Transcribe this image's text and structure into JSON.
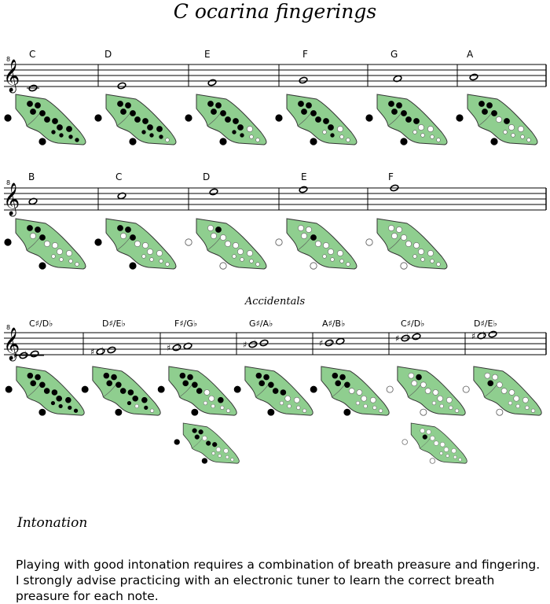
{
  "title": "C ocarina fingerings",
  "clef_octave_mark": "8",
  "rows": [
    {
      "id": "natural-row-1",
      "notes": [
        {
          "label": "C",
          "fingering": [
            1,
            1,
            1,
            1,
            1,
            1,
            1,
            1,
            1,
            1,
            1,
            1
          ]
        },
        {
          "label": "D",
          "fingering": [
            1,
            1,
            1,
            1,
            1,
            1,
            1,
            1,
            1,
            1,
            1,
            0
          ]
        },
        {
          "label": "E",
          "fingering": [
            1,
            1,
            1,
            1,
            1,
            1,
            1,
            0,
            1,
            1,
            0,
            0
          ]
        },
        {
          "label": "F",
          "fingering": [
            1,
            1,
            1,
            1,
            1,
            1,
            1,
            0,
            0,
            1,
            0,
            0
          ]
        },
        {
          "label": "G",
          "fingering": [
            1,
            1,
            1,
            1,
            1,
            1,
            0,
            0,
            0,
            0,
            0,
            0
          ]
        },
        {
          "label": "A",
          "fingering": [
            1,
            1,
            1,
            1,
            0,
            1,
            0,
            0,
            0,
            0,
            0,
            0
          ]
        }
      ]
    },
    {
      "id": "natural-row-2",
      "notes": [
        {
          "label": "B",
          "fingering": [
            1,
            1,
            0,
            1,
            0,
            0,
            0,
            0,
            0,
            0,
            0,
            0
          ]
        },
        {
          "label": "C",
          "fingering": [
            1,
            1,
            0,
            1,
            0,
            0,
            0,
            0,
            0,
            0,
            0,
            0
          ]
        },
        {
          "label": "D",
          "fingering": [
            0,
            1,
            0,
            0,
            0,
            0,
            0,
            0,
            0,
            0,
            0,
            0
          ]
        },
        {
          "label": "E",
          "fingering": [
            0,
            0,
            0,
            1,
            0,
            0,
            0,
            0,
            0,
            0,
            0,
            0
          ]
        },
        {
          "label": "F",
          "fingering": [
            0,
            0,
            0,
            0,
            0,
            0,
            0,
            0,
            0,
            0,
            0,
            0
          ]
        }
      ]
    }
  ],
  "accidentals": {
    "heading": "Accidentals",
    "notes": [
      {
        "label": "C♯/D♭",
        "fingering": [
          1,
          1,
          1,
          1,
          1,
          1,
          1,
          1,
          1,
          1,
          1,
          1
        ]
      },
      {
        "label": "D♯/E♭",
        "fingering": [
          1,
          1,
          1,
          1,
          1,
          1,
          1,
          1,
          1,
          0,
          1,
          0
        ]
      },
      {
        "label": "F♯/G♭",
        "fingering": [
          1,
          1,
          1,
          1,
          1,
          0,
          0,
          1,
          0,
          0,
          0,
          0
        ]
      },
      {
        "label": "G♯/A♭",
        "fingering": [
          1,
          1,
          1,
          1,
          1,
          1,
          0,
          0,
          0,
          0,
          0,
          0
        ]
      },
      {
        "label": "A♯/B♭",
        "fingering": [
          1,
          1,
          1,
          1,
          0,
          0,
          0,
          0,
          0,
          0,
          0,
          0
        ]
      },
      {
        "label": "C♯/D♭",
        "fingering": [
          0,
          1,
          0,
          0,
          0,
          0,
          0,
          0,
          0,
          0,
          0,
          0
        ]
      },
      {
        "label": "D♯/E♭",
        "fingering": [
          0,
          0,
          1,
          0,
          0,
          0,
          0,
          0,
          0,
          0,
          0,
          0
        ]
      }
    ],
    "alternates": [
      {
        "under_note": 3,
        "fingering": [
          1,
          1,
          1,
          0,
          1,
          1,
          0,
          0,
          0,
          0,
          0,
          0
        ]
      },
      {
        "under_note": 6,
        "fingering": [
          0,
          0,
          1,
          0,
          0,
          0,
          0,
          0,
          0,
          0,
          0,
          0
        ]
      }
    ]
  },
  "intonation": {
    "heading": "Intonation",
    "body": "Playing with good intonation requires a combination of breath preasure and fingering. I strongly advise practicing with an electronic tuner to learn the correct breath preasure for each note."
  },
  "colors": {
    "ocarina_fill": "#8fce8f",
    "ocarina_stroke": "#333333",
    "hole_closed": "#000000",
    "hole_open": "#ffffff",
    "staff": "#000000"
  }
}
